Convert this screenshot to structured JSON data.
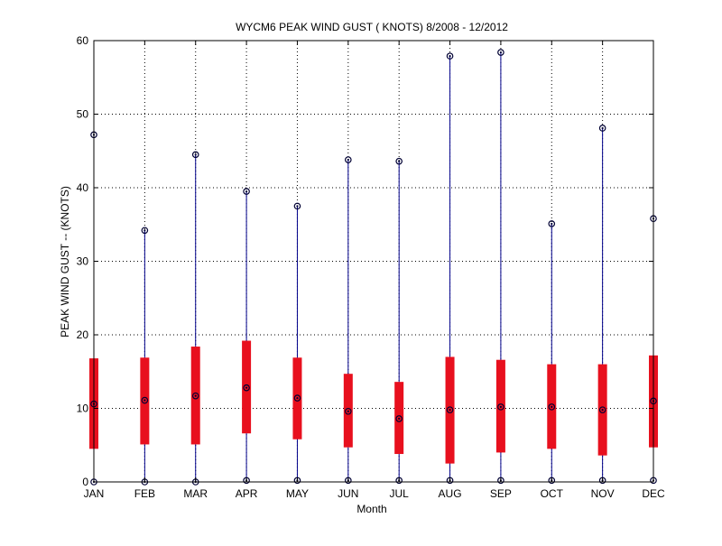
{
  "chart_data": {
    "type": "box",
    "title": "WYCM6  PEAK WIND GUST ( KNOTS) 8/2008 - 12/2012",
    "xlabel": "Month",
    "ylabel": "PEAK WIND GUST -- (KNOTS)",
    "ylim": [
      0,
      60
    ],
    "yticks": [
      "0",
      "10",
      "20",
      "30",
      "40",
      "50",
      "60"
    ],
    "grid": true,
    "categories": [
      "JAN",
      "FEB",
      "MAR",
      "APR",
      "MAY",
      "JUN",
      "JUL",
      "AUG",
      "SEP",
      "OCT",
      "NOV",
      "DEC"
    ],
    "boxes": [
      {
        "min": 0.0,
        "q1": 4.5,
        "median": 10.6,
        "q3": 16.8,
        "max": 47.2
      },
      {
        "min": 0.0,
        "q1": 5.1,
        "median": 11.1,
        "q3": 16.9,
        "max": 34.2
      },
      {
        "min": 0.0,
        "q1": 5.1,
        "median": 11.7,
        "q3": 18.4,
        "max": 44.5
      },
      {
        "min": 0.2,
        "q1": 6.6,
        "median": 12.8,
        "q3": 19.2,
        "max": 39.5
      },
      {
        "min": 0.2,
        "q1": 5.8,
        "median": 11.4,
        "q3": 16.9,
        "max": 37.5
      },
      {
        "min": 0.2,
        "q1": 4.7,
        "median": 9.6,
        "q3": 14.7,
        "max": 43.8
      },
      {
        "min": 0.2,
        "q1": 3.8,
        "median": 8.6,
        "q3": 13.6,
        "max": 43.6
      },
      {
        "min": 0.2,
        "q1": 2.5,
        "median": 9.8,
        "q3": 17.0,
        "max": 57.9
      },
      {
        "min": 0.2,
        "q1": 4.0,
        "median": 10.2,
        "q3": 16.6,
        "max": 58.4
      },
      {
        "min": 0.2,
        "q1": 4.5,
        "median": 10.2,
        "q3": 16.0,
        "max": 35.1
      },
      {
        "min": 0.2,
        "q1": 3.6,
        "median": 9.8,
        "q3": 16.0,
        "max": 48.1
      },
      {
        "min": 0.2,
        "q1": 4.7,
        "median": 11.0,
        "q3": 17.2,
        "max": 35.8
      }
    ],
    "colors": {
      "box": "#e8101e",
      "whisker": "#00008b",
      "marker": "#000033",
      "grid": "#000000",
      "axis": "#000000"
    }
  }
}
